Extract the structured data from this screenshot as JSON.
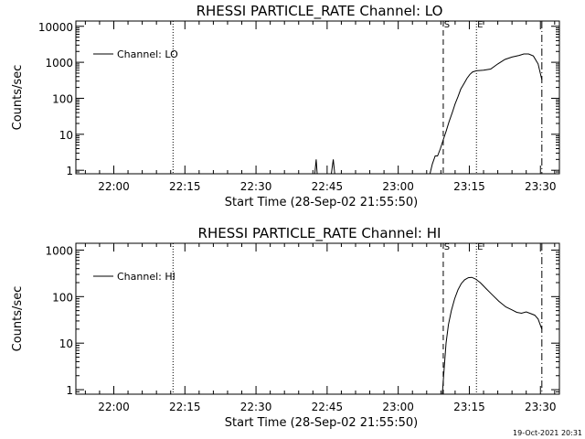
{
  "timestamp": "19-Oct-2021 20:31",
  "chart_data": [
    {
      "type": "line",
      "title": "RHESSI PARTICLE_RATE Channel: LO",
      "xlabel": "Start Time (28-Sep-02 21:55:50)",
      "ylabel": "Counts/sec",
      "x_axis_minutes": [
        -4,
        98
      ],
      "x_ticks": [
        {
          "minute": 4,
          "label": "22:00"
        },
        {
          "minute": 19,
          "label": "22:15"
        },
        {
          "minute": 34,
          "label": "22:30"
        },
        {
          "minute": 49,
          "label": "22:45"
        },
        {
          "minute": 64,
          "label": "23:00"
        },
        {
          "minute": 79,
          "label": "23:15"
        },
        {
          "minute": 94,
          "label": "23:30"
        }
      ],
      "y_scale": "log",
      "ylim": [
        0.8,
        14000
      ],
      "y_ticks": [
        {
          "value": 1,
          "label": "1"
        },
        {
          "value": 10,
          "label": "10"
        },
        {
          "value": 100,
          "label": "100"
        },
        {
          "value": 1000,
          "label": "1000"
        },
        {
          "value": 10000,
          "label": "10000"
        }
      ],
      "legend": {
        "label": "Channel: LO",
        "position": "top-left"
      },
      "markers": [
        {
          "minute": 16.5,
          "style": "dotted",
          "label": ""
        },
        {
          "minute": 73.5,
          "style": "dashed",
          "label": "S"
        },
        {
          "minute": 80.5,
          "style": "dotted",
          "label": "E"
        },
        {
          "minute": 94.3,
          "style": "dashdot",
          "label": ""
        }
      ],
      "series": [
        {
          "name": "Channel: LO",
          "points": [
            [
              -4,
              0.8
            ],
            [
              46.4,
              0.8
            ],
            [
              46.7,
              2.0
            ],
            [
              46.9,
              0.8
            ],
            [
              49.9,
              0.8
            ],
            [
              50.3,
              2.0
            ],
            [
              50.6,
              0.8
            ],
            [
              70.7,
              0.8
            ],
            [
              71.2,
              1.5
            ],
            [
              71.8,
              2.5
            ],
            [
              72.3,
              2.5
            ],
            [
              72.9,
              4
            ],
            [
              73.5,
              7
            ],
            [
              74.1,
              12
            ],
            [
              74.7,
              22
            ],
            [
              75.4,
              40
            ],
            [
              76.0,
              70
            ],
            [
              76.6,
              110
            ],
            [
              77.2,
              180
            ],
            [
              77.9,
              260
            ],
            [
              78.5,
              360
            ],
            [
              79.1,
              460
            ],
            [
              79.7,
              540
            ],
            [
              80.5,
              580
            ],
            [
              82.0,
              600
            ],
            [
              83.5,
              650
            ],
            [
              85.0,
              900
            ],
            [
              86.5,
              1200
            ],
            [
              88.0,
              1400
            ],
            [
              89.5,
              1550
            ],
            [
              90.5,
              1700
            ],
            [
              91.5,
              1700
            ],
            [
              92.5,
              1500
            ],
            [
              93.5,
              900
            ],
            [
              94.3,
              330
            ]
          ]
        }
      ]
    },
    {
      "type": "line",
      "title": "RHESSI PARTICLE_RATE Channel: HI",
      "xlabel": "Start Time (28-Sep-02 21:55:50)",
      "ylabel": "Counts/sec",
      "x_axis_minutes": [
        -4,
        98
      ],
      "x_ticks": [
        {
          "minute": 4,
          "label": "22:00"
        },
        {
          "minute": 19,
          "label": "22:15"
        },
        {
          "minute": 34,
          "label": "22:30"
        },
        {
          "minute": 49,
          "label": "22:45"
        },
        {
          "minute": 64,
          "label": "23:00"
        },
        {
          "minute": 79,
          "label": "23:15"
        },
        {
          "minute": 94,
          "label": "23:30"
        }
      ],
      "y_scale": "log",
      "ylim": [
        0.8,
        1400
      ],
      "y_ticks": [
        {
          "value": 1,
          "label": "1"
        },
        {
          "value": 10,
          "label": "10"
        },
        {
          "value": 100,
          "label": "100"
        },
        {
          "value": 1000,
          "label": "1000"
        }
      ],
      "legend": {
        "label": "Channel: HI",
        "position": "top-left"
      },
      "markers": [
        {
          "minute": 16.5,
          "style": "dotted",
          "label": ""
        },
        {
          "minute": 73.5,
          "style": "dashed",
          "label": "S"
        },
        {
          "minute": 80.5,
          "style": "dotted",
          "label": "E"
        },
        {
          "minute": 94.3,
          "style": "dashdot",
          "label": ""
        }
      ],
      "series": [
        {
          "name": "Channel: HI",
          "points": [
            [
              73.3,
              0.8
            ],
            [
              73.7,
              3
            ],
            [
              74.1,
              10
            ],
            [
              74.6,
              25
            ],
            [
              75.2,
              50
            ],
            [
              75.9,
              90
            ],
            [
              76.6,
              140
            ],
            [
              77.3,
              190
            ],
            [
              78.0,
              230
            ],
            [
              78.8,
              255
            ],
            [
              79.5,
              260
            ],
            [
              80.3,
              240
            ],
            [
              81.3,
              200
            ],
            [
              82.5,
              150
            ],
            [
              83.8,
              110
            ],
            [
              85.2,
              80
            ],
            [
              86.7,
              60
            ],
            [
              88.0,
              52
            ],
            [
              89.0,
              46
            ],
            [
              90.0,
              44
            ],
            [
              91.0,
              47
            ],
            [
              92.0,
              43
            ],
            [
              92.8,
              40
            ],
            [
              93.5,
              33
            ],
            [
              94.3,
              20
            ]
          ]
        }
      ]
    }
  ]
}
